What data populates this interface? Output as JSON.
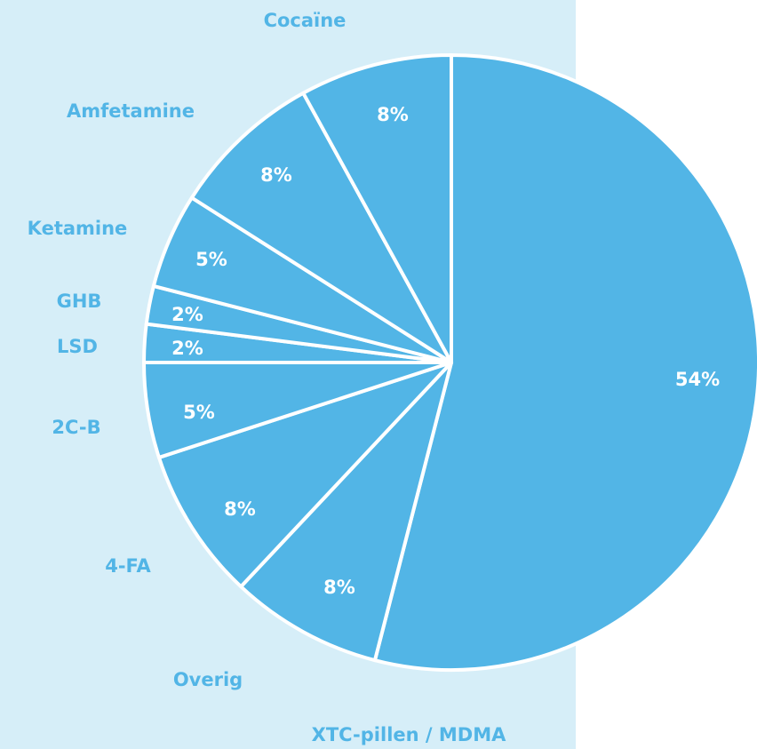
{
  "chart_data": {
    "type": "pie",
    "categories": [
      "XTC-pillen / MDMA",
      "Overig",
      "4-FA",
      "2C-B",
      "LSD",
      "GHB",
      "Ketamine",
      "Amfetamine",
      "Cocaïne"
    ],
    "values": [
      54,
      8,
      8,
      5,
      2,
      2,
      5,
      8,
      8
    ],
    "value_labels": [
      "54%",
      "8%",
      "8%",
      "5%",
      "2%",
      "2%",
      "5%",
      "8%",
      "8%"
    ],
    "color": "#52b5e6"
  }
}
